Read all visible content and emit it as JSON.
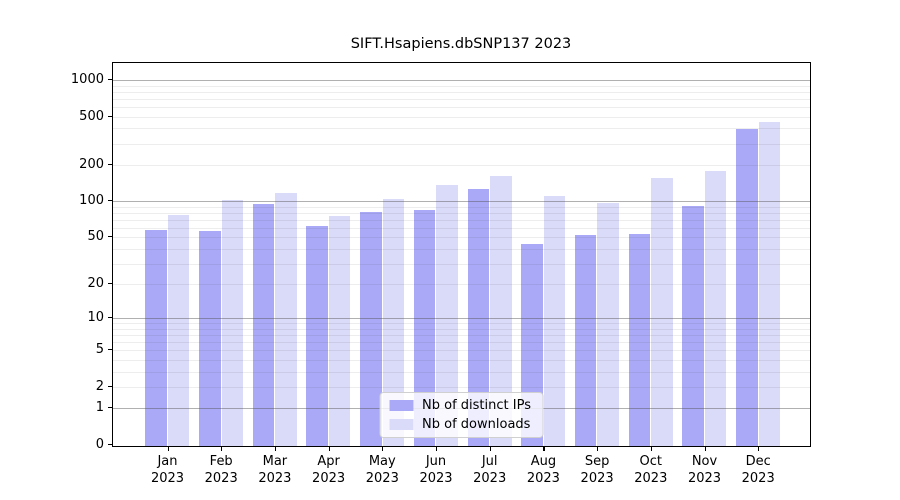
{
  "title": "SIFT.Hsapiens.dbSNP137 2023",
  "y_axis": {
    "tick_values": [
      0,
      1,
      2,
      5,
      10,
      20,
      50,
      100,
      200,
      500,
      1000
    ]
  },
  "x_axis": {
    "year": "2023"
  },
  "colors": {
    "distinct_ips": "#a9a9f8",
    "downloads": "#dadaf9",
    "major_grid": "#b5b5b5",
    "minor_grid": "#ececec"
  },
  "legend": {
    "position": "lower center"
  },
  "chart_data": {
    "type": "bar",
    "title": "SIFT.Hsapiens.dbSNP137 2023",
    "categories": [
      "Jan 2023",
      "Feb 2023",
      "Mar 2023",
      "Apr 2023",
      "May 2023",
      "Jun 2023",
      "Jul 2023",
      "Aug 2023",
      "Sep 2023",
      "Oct 2023",
      "Nov 2023",
      "Dec 2023"
    ],
    "series": [
      {
        "name": "Nb of distinct IPs",
        "color": "#a9a9f8",
        "values": [
          57,
          56,
          95,
          62,
          82,
          84,
          125,
          44,
          52,
          53,
          91,
          397
        ]
      },
      {
        "name": "Nb of downloads",
        "color": "#dadaf9",
        "values": [
          77,
          102,
          117,
          75,
          105,
          135,
          162,
          110,
          97,
          157,
          178,
          453
        ]
      }
    ],
    "xlabel": "",
    "ylabel": "",
    "y_scale": "log1p",
    "ylim": [
      0,
      1400
    ],
    "y_ticks": [
      0,
      1,
      2,
      5,
      10,
      20,
      50,
      100,
      200,
      500,
      1000
    ],
    "minor_gridlines": [
      2,
      3,
      4,
      5,
      6,
      7,
      8,
      9,
      20,
      30,
      40,
      50,
      60,
      70,
      80,
      90,
      200,
      300,
      400,
      500,
      600,
      700,
      800,
      900
    ],
    "major_gridlines": [
      1,
      10,
      100,
      1000
    ],
    "grid": true,
    "legend_position": "lower center"
  }
}
